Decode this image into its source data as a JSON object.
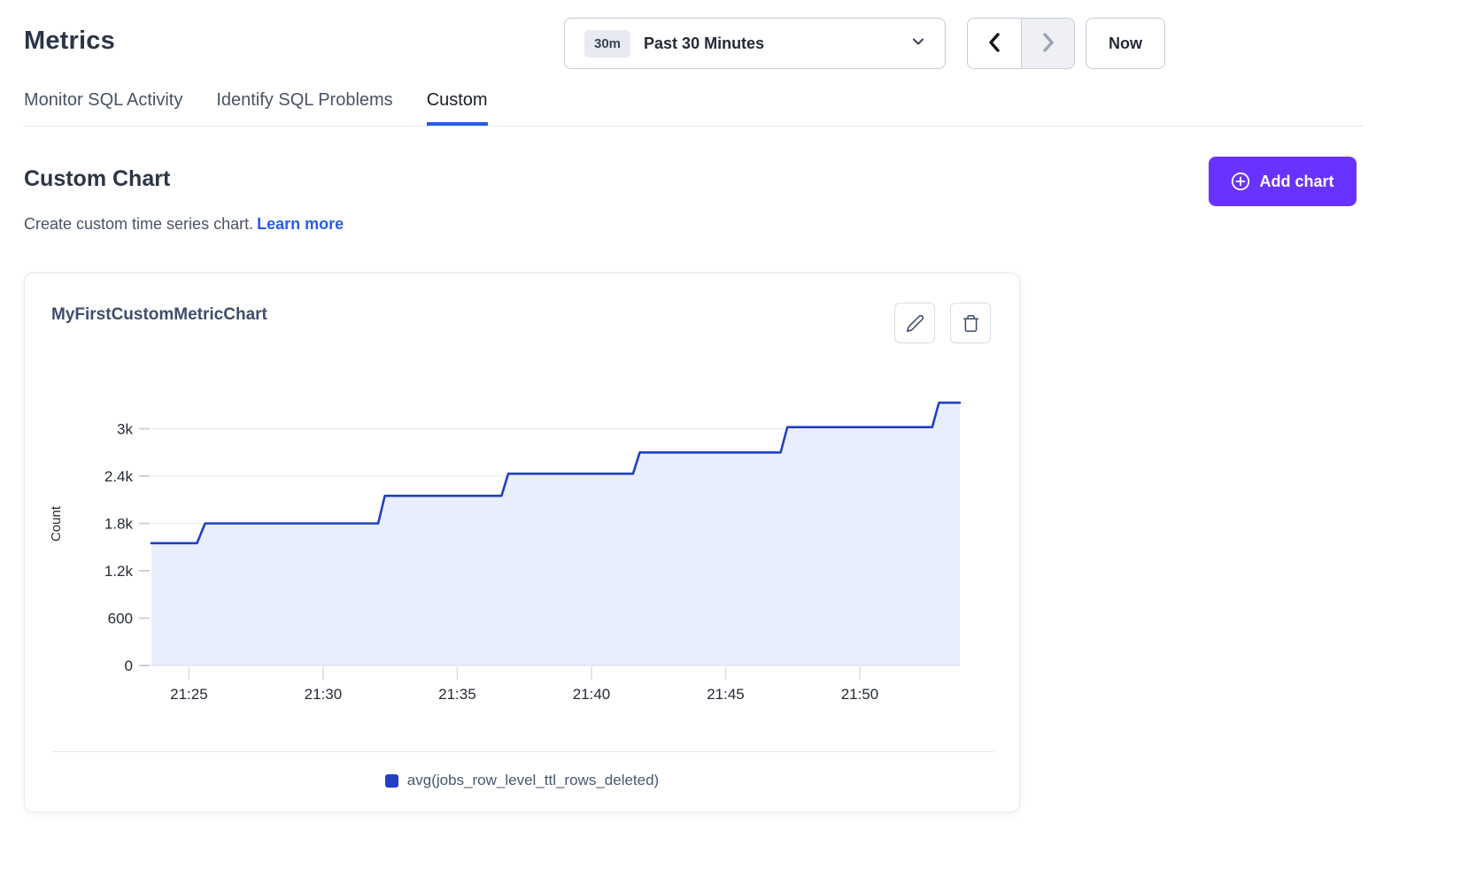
{
  "page": {
    "title": "Metrics"
  },
  "time_controls": {
    "range_badge": "30m",
    "range_label": "Past 30 Minutes",
    "now_label": "Now"
  },
  "tabs": [
    {
      "label": "Monitor SQL Activity",
      "active": false
    },
    {
      "label": "Identify SQL Problems",
      "active": false
    },
    {
      "label": "Custom",
      "active": true
    }
  ],
  "section": {
    "heading": "Custom Chart",
    "subtitle": "Create custom time series chart.",
    "learn_more_label": "Learn more",
    "add_chart_label": "Add chart"
  },
  "card": {
    "title": "MyFirstCustomMetricChart"
  },
  "icons": {
    "dropdown": "chevron-down",
    "previous": "chevron-left",
    "next": "chevron-right",
    "add": "plus-circle",
    "edit": "pencil",
    "delete": "trash"
  },
  "colors": {
    "accent_purple": "#6933ff",
    "link_blue": "#2b5ce8",
    "tab_underline": "#2b5ce8",
    "series_line": "#2040c4",
    "series_fill": "#e9eefc",
    "grid": "#e7e9ee",
    "text_dark": "#242a35",
    "text_slate": "#475872"
  },
  "chart_data": {
    "type": "area",
    "step": true,
    "title": "MyFirstCustomMetricChart",
    "xlabel": "",
    "ylabel": "Count",
    "ylim": [
      0,
      3600
    ],
    "grid": true,
    "legend_position": "bottom",
    "x_range_minutes": [
      23.6,
      53.73
    ],
    "x_ticks": [
      {
        "m": 25,
        "label": "21:25"
      },
      {
        "m": 30,
        "label": "21:30"
      },
      {
        "m": 35,
        "label": "21:35"
      },
      {
        "m": 40,
        "label": "21:40"
      },
      {
        "m": 45,
        "label": "21:45"
      },
      {
        "m": 50,
        "label": "21:50"
      }
    ],
    "y_ticks": [
      {
        "v": 0,
        "label": "0"
      },
      {
        "v": 600,
        "label": "600"
      },
      {
        "v": 1200,
        "label": "1.2k"
      },
      {
        "v": 1800,
        "label": "1.8k"
      },
      {
        "v": 2400,
        "label": "2.4k"
      },
      {
        "v": 3000,
        "label": "3k"
      }
    ],
    "series": [
      {
        "name": "avg(jobs_row_level_ttl_rows_deleted)",
        "color": "#2040c4",
        "fill": "#e9eefc",
        "points_min_value": [
          [
            23.6,
            1550
          ],
          [
            25.3,
            1550
          ],
          [
            25.6,
            1800
          ],
          [
            32.05,
            1800
          ],
          [
            32.3,
            2150
          ],
          [
            36.65,
            2150
          ],
          [
            36.9,
            2430
          ],
          [
            41.55,
            2430
          ],
          [
            41.8,
            2700
          ],
          [
            47.05,
            2700
          ],
          [
            47.3,
            3020
          ],
          [
            52.7,
            3020
          ],
          [
            52.95,
            3330
          ],
          [
            53.73,
            3330
          ]
        ]
      }
    ]
  }
}
